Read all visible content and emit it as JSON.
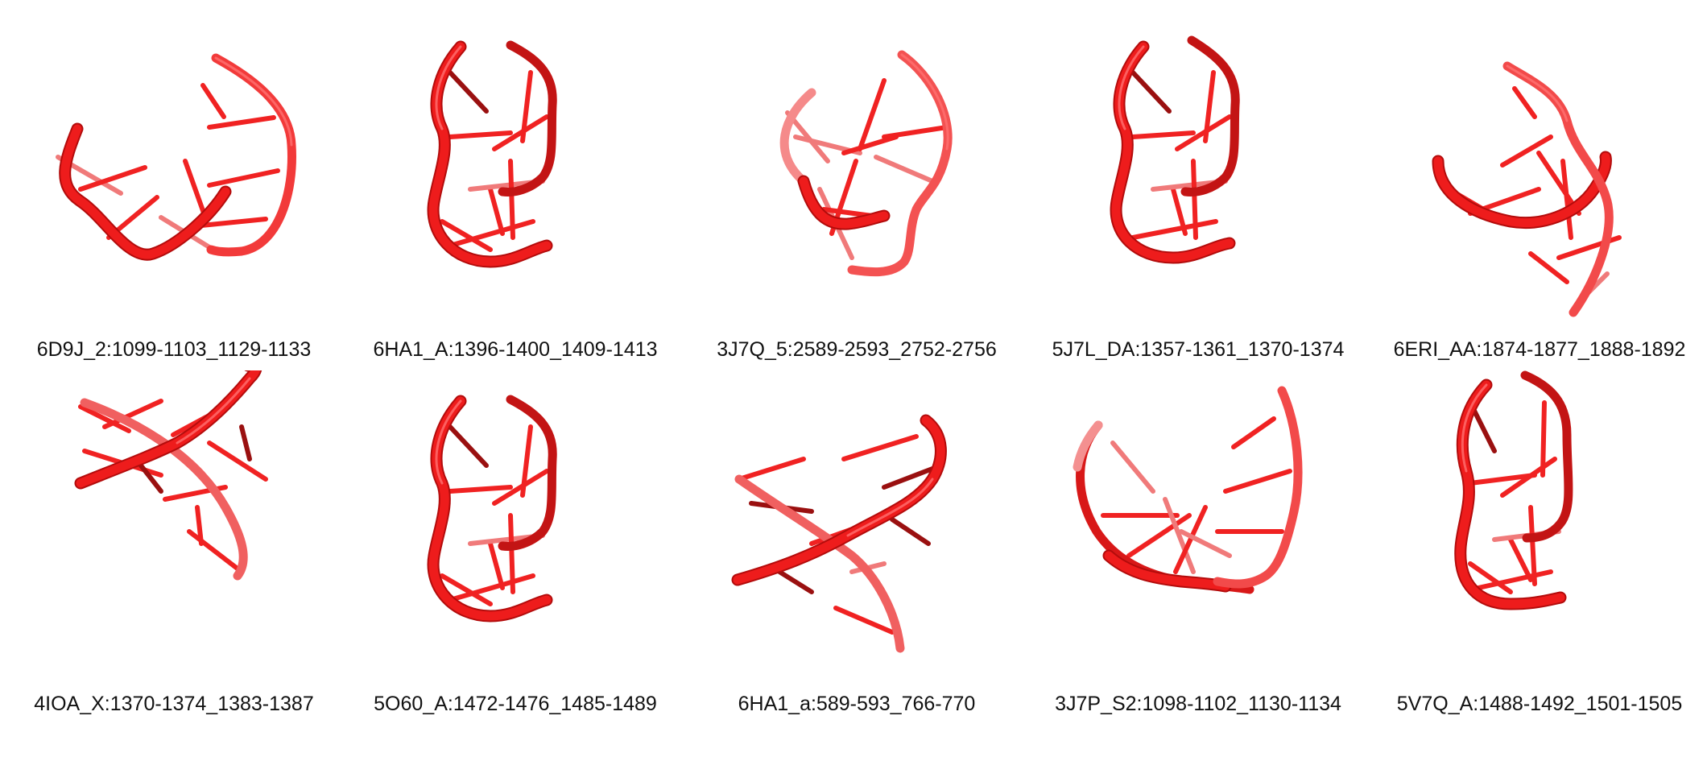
{
  "panels": [
    {
      "label": "6D9J_2:1099-1103_1129-1133"
    },
    {
      "label": "6HA1_A:1396-1400_1409-1413"
    },
    {
      "label": "3J7Q_5:2589-2593_2752-2756"
    },
    {
      "label": "5J7L_DA:1357-1361_1370-1374"
    },
    {
      "label": "6ERI_AA:1874-1877_1888-1892"
    },
    {
      "label": "4IOA_X:1370-1374_1383-1387"
    },
    {
      "label": "5O60_A:1472-1476_1485-1489"
    },
    {
      "label": "6HA1_a:589-593_766-770"
    },
    {
      "label": "3J7P_S2:1098-1102_1130-1134"
    },
    {
      "label": "5V7Q_A:1488-1492_1501-1505"
    }
  ],
  "colors": {
    "backbone": "#ee1c1c",
    "backbone_dark": "#b30c0c",
    "rung": "#f02222",
    "background": "#ffffff",
    "text": "#111111"
  }
}
